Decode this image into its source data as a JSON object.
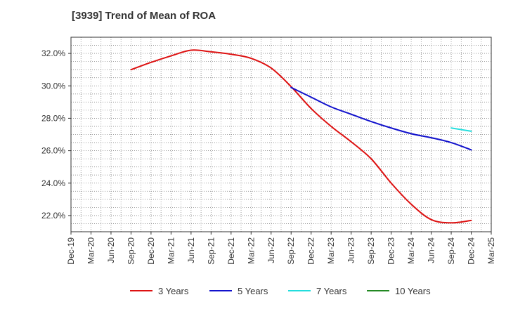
{
  "chart_data": {
    "type": "line",
    "title": "[3939]  Trend of Mean of ROA",
    "xlabel": "",
    "ylabel": "",
    "x_ticks": [
      "Dec-19",
      "Mar-20",
      "Jun-20",
      "Sep-20",
      "Dec-20",
      "Mar-21",
      "Jun-21",
      "Sep-21",
      "Dec-21",
      "Mar-22",
      "Jun-22",
      "Sep-22",
      "Dec-22",
      "Mar-23",
      "Jun-23",
      "Sep-23",
      "Dec-23",
      "Mar-24",
      "Jun-24",
      "Sep-24",
      "Dec-24",
      "Mar-25"
    ],
    "y_ticks": [
      22.0,
      24.0,
      26.0,
      28.0,
      30.0,
      32.0
    ],
    "y_tick_format": "%.1f%",
    "ylim": [
      21.0,
      33.0
    ],
    "grid": true,
    "legend_position": "bottom",
    "series": [
      {
        "name": "3 Years",
        "color": "#dd1111",
        "x": [
          "Sep-20",
          "Dec-20",
          "Mar-21",
          "Jun-21",
          "Sep-21",
          "Dec-21",
          "Mar-22",
          "Jun-22",
          "Sep-22",
          "Dec-22",
          "Mar-23",
          "Jun-23",
          "Sep-23",
          "Dec-23",
          "Mar-24",
          "Jun-24",
          "Sep-24",
          "Dec-24"
        ],
        "values": [
          31.0,
          31.45,
          31.85,
          32.2,
          32.1,
          31.95,
          31.7,
          31.1,
          29.95,
          28.6,
          27.5,
          26.55,
          25.5,
          24.0,
          22.7,
          21.75,
          21.55,
          21.7
        ]
      },
      {
        "name": "5 Years",
        "color": "#1111cc",
        "x": [
          "Sep-22",
          "Dec-22",
          "Mar-23",
          "Jun-23",
          "Sep-23",
          "Dec-23",
          "Mar-24",
          "Jun-24",
          "Sep-24",
          "Dec-24"
        ],
        "values": [
          29.9,
          29.3,
          28.7,
          28.25,
          27.8,
          27.4,
          27.05,
          26.8,
          26.5,
          26.05
        ]
      },
      {
        "name": "7 Years",
        "color": "#22dddd",
        "x": [
          "Sep-24",
          "Dec-24"
        ],
        "values": [
          27.4,
          27.2
        ]
      },
      {
        "name": "10 Years",
        "color": "#228822",
        "x": [],
        "values": []
      }
    ]
  }
}
